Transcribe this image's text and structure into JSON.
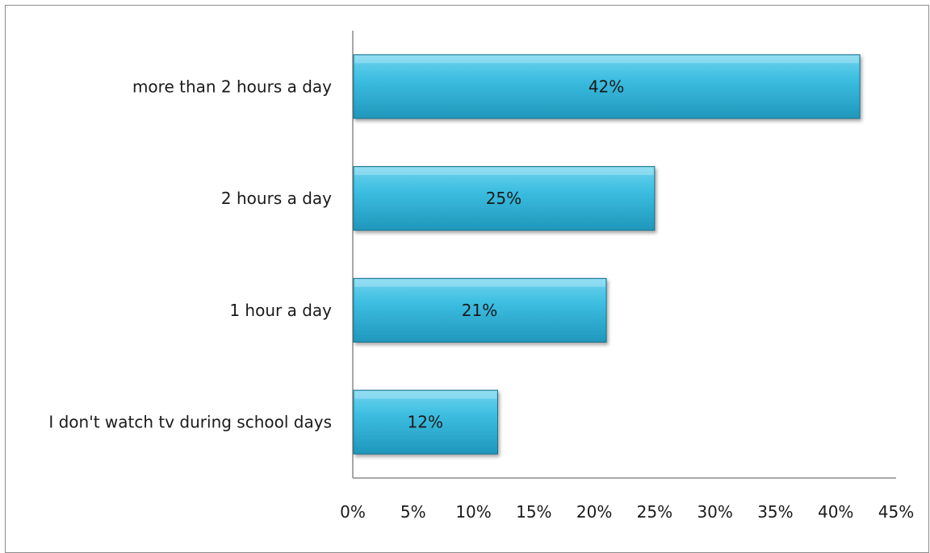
{
  "chart_data": {
    "type": "bar",
    "orientation": "horizontal",
    "title": "",
    "xlabel": "",
    "ylabel": "",
    "categories": [
      "more than 2 hours a day",
      "2 hours a day",
      "1 hour a day",
      "I don't watch tv during school days"
    ],
    "values": [
      42,
      25,
      21,
      12
    ],
    "data_labels": [
      "42%",
      "25%",
      "21%",
      "12%"
    ],
    "x_ticks": [
      "0%",
      "5%",
      "10%",
      "15%",
      "20%",
      "25%",
      "30%",
      "35%",
      "40%",
      "45%"
    ],
    "xlim": [
      0,
      45
    ],
    "grid": false,
    "legend": "none",
    "colors": {
      "bar_fill": "#33b3d7",
      "bar_fill_light": "#5fcbe8",
      "bar_fill_dark": "#1f8db0",
      "bar_edge": "#17708c",
      "axis": "#8c8c8c"
    }
  }
}
